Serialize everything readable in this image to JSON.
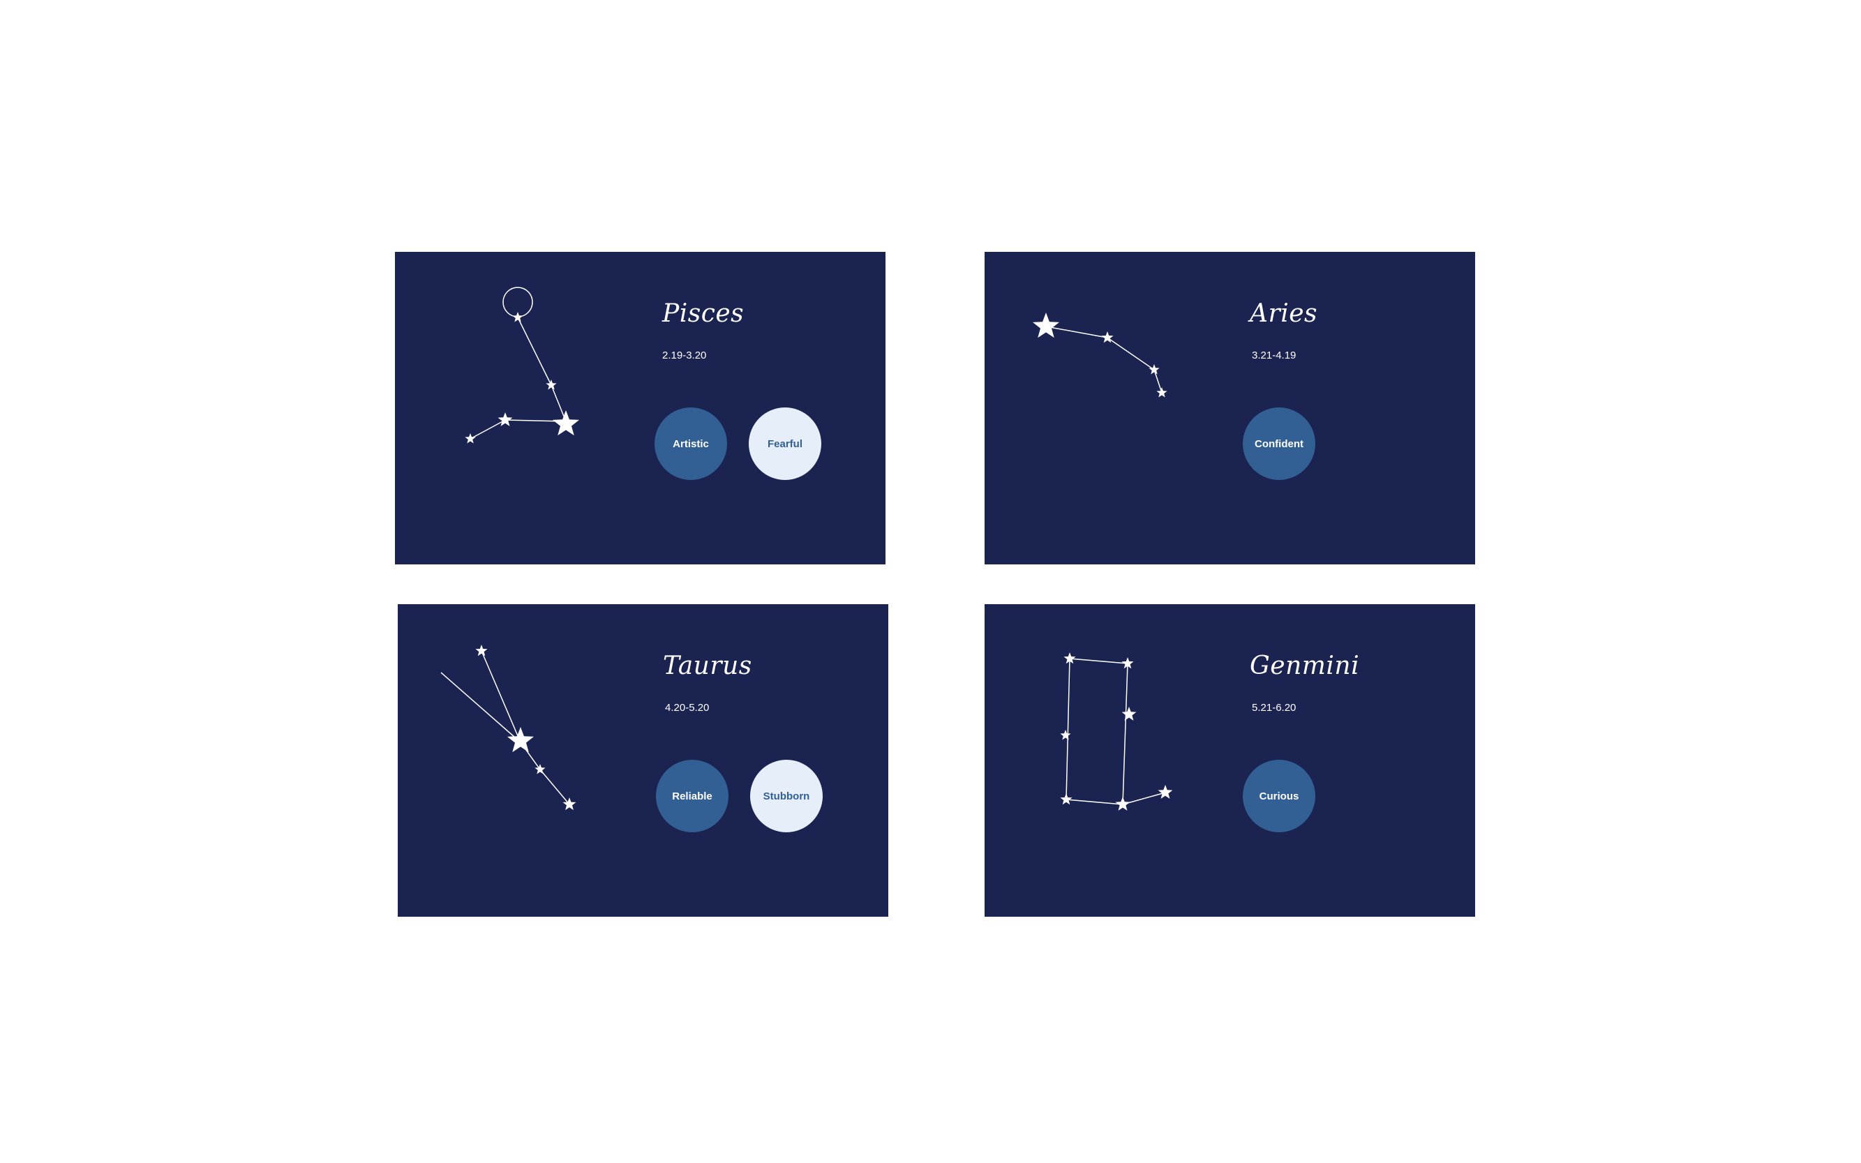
{
  "cards": {
    "pisces": {
      "name": "Pisces",
      "dates": "2.19-3.20",
      "traits": [
        {
          "label": "Artistic",
          "style": "primary"
        },
        {
          "label": "Fearful",
          "style": "light"
        }
      ],
      "icon": "pisces-constellation-icon"
    },
    "aries": {
      "name": "Aries",
      "dates": "3.21-4.19",
      "traits": [
        {
          "label": "Confident",
          "style": "primary"
        }
      ],
      "icon": "aries-constellation-icon"
    },
    "taurus": {
      "name": "Taurus",
      "dates": "4.20-5.20",
      "traits": [
        {
          "label": "Reliable",
          "style": "primary"
        },
        {
          "label": "Stubborn",
          "style": "light"
        }
      ],
      "icon": "taurus-constellation-icon"
    },
    "gemini": {
      "name": "Genmini",
      "dates": "5.21-6.20",
      "traits": [
        {
          "label": "Curious",
          "style": "primary"
        }
      ],
      "icon": "gemini-constellation-icon"
    }
  },
  "colors": {
    "background": "#ffffff",
    "card": "#1b2350",
    "trait_primary": "#325f94",
    "trait_light": "#e6eefa",
    "text": "#ffffff"
  }
}
